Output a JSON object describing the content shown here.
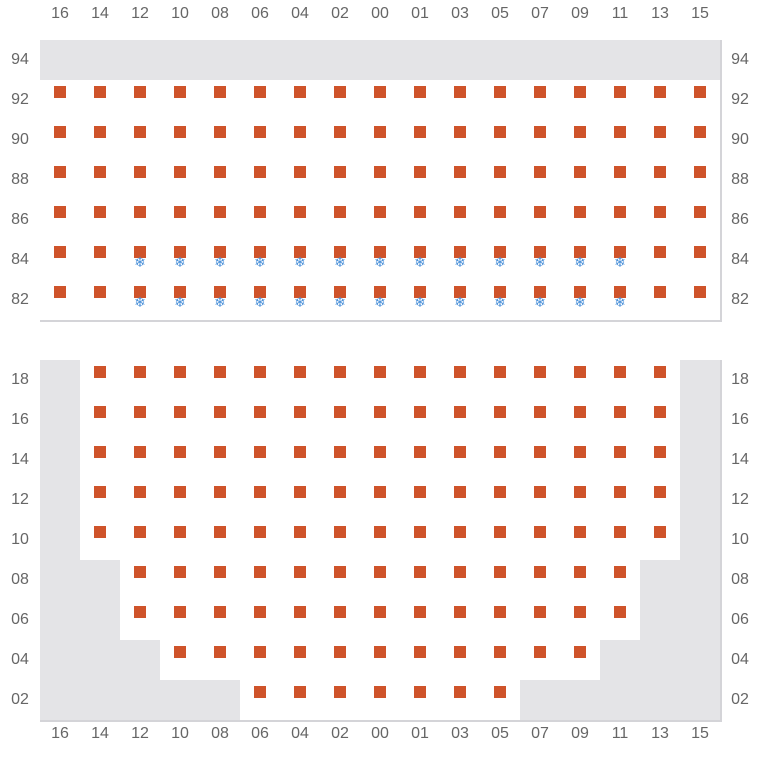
{
  "colors": {
    "unit": "#cf532a",
    "snowflake": "#4a90d9",
    "unavailable": "#e4e4e7",
    "grid_line": "#d4d4d8"
  },
  "icons": {
    "unit": "square",
    "cold": "snowflake-icon"
  },
  "columns": [
    "16",
    "14",
    "12",
    "10",
    "08",
    "06",
    "04",
    "02",
    "00",
    "01",
    "03",
    "05",
    "07",
    "09",
    "11",
    "13",
    "15"
  ],
  "legend_key": {
    "g": "unavailable",
    "e": "empty",
    "s": "occupied",
    "c": "occupied-cold"
  },
  "top_section": {
    "rows": [
      {
        "label": "94",
        "cells": "ggggggggggggggggg"
      },
      {
        "label": "92",
        "cells": "sssssssssssssssss"
      },
      {
        "label": "90",
        "cells": "sssssssssssssssss"
      },
      {
        "label": "88",
        "cells": "sssssssssssssssss"
      },
      {
        "label": "86",
        "cells": "sssssssssssssssss"
      },
      {
        "label": "84",
        "cells": "sscccccccccccccss"
      },
      {
        "label": "82",
        "cells": "sscccccccccccccss"
      }
    ]
  },
  "bottom_section": {
    "rows": [
      {
        "label": "18",
        "cells": "gsssssssssssssssg"
      },
      {
        "label": "16",
        "cells": "gsssssssssssssssg"
      },
      {
        "label": "14",
        "cells": "gsssssssssssssssg"
      },
      {
        "label": "12",
        "cells": "gsssssssssssssssg"
      },
      {
        "label": "10",
        "cells": "gsssssssssssssssg"
      },
      {
        "label": "08",
        "cells": "ggsssssssssssssgg"
      },
      {
        "label": "06",
        "cells": "ggsssssssssssssgg"
      },
      {
        "label": "04",
        "cells": "gggsssssssssssggg"
      },
      {
        "label": "02",
        "cells": "gggggsssssssggggg"
      }
    ]
  }
}
